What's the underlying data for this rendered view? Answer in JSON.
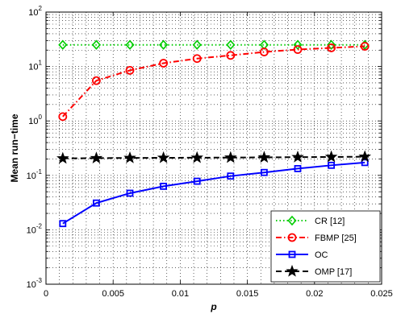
{
  "chart_data": {
    "type": "line",
    "title": "",
    "xlabel": "p",
    "ylabel": "Mean run−time",
    "xlim": [
      0,
      0.025
    ],
    "ylim": [
      0.001,
      100
    ],
    "yscale": "log",
    "grid": true,
    "legend_position": "bottom-right",
    "x_ticks": [
      {
        "value": 0,
        "label": "0"
      },
      {
        "value": 0.005,
        "label": "0.005"
      },
      {
        "value": 0.01,
        "label": "0.01"
      },
      {
        "value": 0.015,
        "label": "0.015"
      },
      {
        "value": 0.02,
        "label": "0.02"
      },
      {
        "value": 0.025,
        "label": "0.025"
      }
    ],
    "y_ticks": [
      {
        "value": 0.001,
        "base": "10",
        "exp": "-3"
      },
      {
        "value": 0.01,
        "base": "10",
        "exp": "-2"
      },
      {
        "value": 0.1,
        "base": "10",
        "exp": "-1"
      },
      {
        "value": 1,
        "base": "10",
        "exp": "0"
      },
      {
        "value": 10,
        "base": "10",
        "exp": "1"
      },
      {
        "value": 100,
        "base": "10",
        "exp": "2"
      }
    ],
    "x": [
      0.00125,
      0.00375,
      0.00625,
      0.00875,
      0.01125,
      0.01375,
      0.01625,
      0.01875,
      0.02125,
      0.02375
    ],
    "series": [
      {
        "name": "CR [12]",
        "color": "#00cc00",
        "dash": "dotted",
        "marker": "diamond",
        "values": [
          25,
          25,
          25,
          25,
          25,
          25,
          25,
          25,
          25,
          25
        ]
      },
      {
        "name": "FBMP [25]",
        "color": "#ff0000",
        "dash": "dashdot",
        "marker": "circle",
        "values": [
          1.2,
          5.5,
          8.5,
          11.5,
          14,
          16,
          18.5,
          20.5,
          22,
          23.5
        ]
      },
      {
        "name": "OC",
        "color": "#0000ff",
        "dash": "solid",
        "marker": "square",
        "values": [
          0.013,
          0.031,
          0.047,
          0.063,
          0.078,
          0.097,
          0.113,
          0.133,
          0.153,
          0.172
        ]
      },
      {
        "name": "OMP [17]",
        "color": "#000000",
        "dash": "dashed",
        "marker": "star",
        "values": [
          0.205,
          0.207,
          0.209,
          0.21,
          0.211,
          0.212,
          0.214,
          0.216,
          0.218,
          0.22
        ]
      }
    ]
  }
}
